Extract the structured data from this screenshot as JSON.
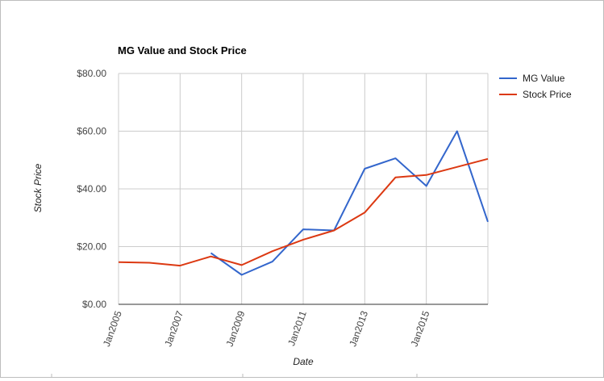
{
  "chart_data": {
    "type": "line",
    "title": "MG Value and Stock Price",
    "xlabel": "Date",
    "ylabel": "Stock Price",
    "ylim": [
      0,
      80
    ],
    "y_ticks": [
      "$0.00",
      "$20.00",
      "$40.00",
      "$60.00",
      "$80.00"
    ],
    "y_tick_values": [
      0,
      20,
      40,
      60,
      80
    ],
    "xlim": [
      "2005-01",
      "2017-01"
    ],
    "x_ticks": [
      "Jan2005",
      "Jan2007",
      "Jan2009",
      "Jan2011",
      "Jan2013",
      "Jan2015"
    ],
    "x_tick_values": [
      2005,
      2007,
      2009,
      2011,
      2013,
      2015
    ],
    "grid": true,
    "legend_position": "top-right",
    "series": [
      {
        "name": "MG Value",
        "color": "#3366cc",
        "x": [
          "2008-01",
          "2009-01",
          "2010-01",
          "2011-01",
          "2012-01",
          "2013-01",
          "2014-01",
          "2015-01",
          "2016-01",
          "2017-01"
        ],
        "values": [
          17.8,
          10.2,
          14.8,
          26.0,
          25.6,
          47.0,
          50.6,
          41.0,
          60.0,
          28.6
        ]
      },
      {
        "name": "Stock Price",
        "color": "#dc3912",
        "x": [
          "2005-01",
          "2006-01",
          "2007-01",
          "2008-01",
          "2009-01",
          "2010-01",
          "2011-01",
          "2012-01",
          "2013-01",
          "2014-01",
          "2015-01",
          "2016-01",
          "2017-01"
        ],
        "values": [
          14.6,
          14.4,
          13.4,
          16.6,
          13.6,
          18.4,
          22.4,
          25.6,
          31.8,
          44.0,
          44.8,
          47.6,
          50.4
        ]
      }
    ]
  }
}
